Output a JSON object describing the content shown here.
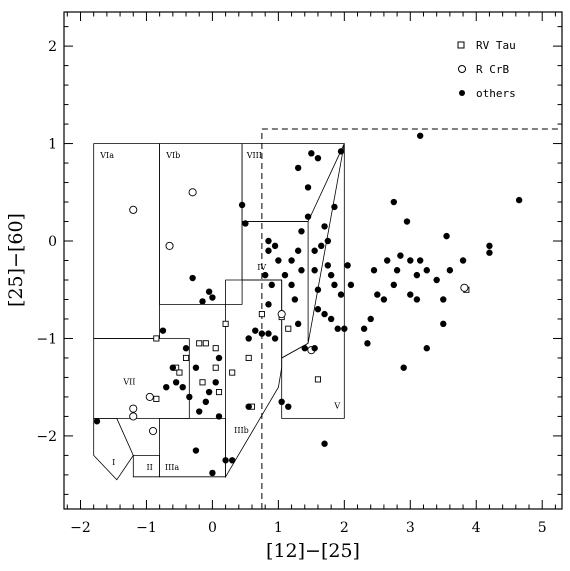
{
  "chart_data": {
    "type": "scatter",
    "xlabel": "[12]−[25]",
    "ylabel": "[25]−[60]",
    "xlim": [
      -2.25,
      5.3
    ],
    "ylim": [
      -2.75,
      2.35
    ],
    "xticks": [
      -2,
      -1,
      0,
      1,
      2,
      3,
      4,
      5
    ],
    "yticks": [
      -2,
      -1,
      0,
      1,
      2
    ],
    "legend": [
      {
        "label": "RV Tau",
        "marker": "open-square"
      },
      {
        "label": "R CrB",
        "marker": "open-circle"
      },
      {
        "label": "others",
        "marker": "filled-circle"
      }
    ],
    "region_labels": [
      "VIa",
      "VIb",
      "VIII",
      "IV",
      "VII",
      "I",
      "II",
      "IIIa",
      "IIIb",
      "V"
    ],
    "reference_lines": {
      "vertical_x": 0.75,
      "horizontal_y": 1.15
    },
    "regions": [
      {
        "label": "VIa",
        "polygon": [
          [
            -1.8,
            1.0
          ],
          [
            -0.8,
            1.0
          ],
          [
            -0.8,
            -1.0
          ],
          [
            -1.8,
            -1.0
          ]
        ]
      },
      {
        "label": "VIb",
        "polygon": [
          [
            -0.8,
            1.0
          ],
          [
            0.45,
            1.0
          ],
          [
            0.45,
            -0.65
          ],
          [
            -0.8,
            -0.65
          ]
        ]
      },
      {
        "label": "VIII",
        "polygon": [
          [
            0.45,
            1.0
          ],
          [
            2.0,
            1.0
          ],
          [
            1.45,
            0.2
          ],
          [
            0.45,
            0.2
          ]
        ]
      },
      {
        "label": "IV",
        "polygon": [
          [
            0.45,
            0.2
          ],
          [
            1.45,
            0.2
          ],
          [
            1.45,
            -1.05
          ],
          [
            1.05,
            -1.2
          ],
          [
            1.05,
            -0.4
          ],
          [
            0.45,
            -0.4
          ]
        ]
      },
      {
        "label": "VII",
        "polygon": [
          [
            -1.8,
            -1.0
          ],
          [
            -0.35,
            -1.0
          ],
          [
            -0.35,
            -1.82
          ],
          [
            -1.8,
            -1.82
          ]
        ]
      },
      {
        "label": "I",
        "polygon": [
          [
            -1.8,
            -1.82
          ],
          [
            -1.45,
            -1.82
          ],
          [
            -1.2,
            -2.2
          ],
          [
            -1.45,
            -2.45
          ],
          [
            -1.8,
            -2.2
          ]
        ]
      },
      {
        "label": "II",
        "polygon": [
          [
            -1.2,
            -2.2
          ],
          [
            -1.2,
            -2.42
          ],
          [
            -0.8,
            -2.42
          ],
          [
            -0.8,
            -2.2
          ]
        ]
      },
      {
        "label": "IIIa",
        "polygon": [
          [
            -0.8,
            -1.82
          ],
          [
            -0.8,
            -2.42
          ],
          [
            0.2,
            -2.42
          ],
          [
            0.2,
            -1.82
          ]
        ]
      },
      {
        "label": "IIIb",
        "polygon": [
          [
            0.2,
            -0.4
          ],
          [
            1.05,
            -0.4
          ],
          [
            1.05,
            -1.3
          ],
          [
            1.0,
            -1.5
          ],
          [
            0.2,
            -2.42
          ]
        ]
      },
      {
        "label": "V",
        "polygon": [
          [
            1.05,
            -1.2
          ],
          [
            1.45,
            -1.05
          ],
          [
            2.0,
            1.0
          ],
          [
            2.0,
            -1.82
          ],
          [
            1.05,
            -1.82
          ]
        ]
      }
    ],
    "series": [
      {
        "name": "RV Tau",
        "marker": "open-square",
        "points": [
          [
            -0.85,
            -1.0
          ],
          [
            -0.2,
            -1.05
          ],
          [
            0.05,
            -1.1
          ],
          [
            0.2,
            -0.85
          ],
          [
            -0.4,
            -1.2
          ],
          [
            0.3,
            -1.35
          ],
          [
            0.1,
            -1.55
          ],
          [
            0.55,
            -1.2
          ],
          [
            -0.15,
            -1.45
          ],
          [
            -0.55,
            -1.3
          ],
          [
            0.6,
            -1.7
          ],
          [
            0.75,
            -0.75
          ],
          [
            1.05,
            -0.78
          ],
          [
            1.15,
            -0.9
          ],
          [
            1.6,
            -1.42
          ],
          [
            -0.85,
            -1.62
          ],
          [
            0.05,
            -1.3
          ],
          [
            -0.1,
            -1.05
          ],
          [
            -0.5,
            -1.35
          ],
          [
            3.85,
            -0.5
          ]
        ]
      },
      {
        "name": "R CrB",
        "marker": "open-circle",
        "points": [
          [
            -1.2,
            0.32
          ],
          [
            -0.3,
            0.5
          ],
          [
            -0.65,
            -0.05
          ],
          [
            -0.95,
            -1.6
          ],
          [
            -1.2,
            -1.72
          ],
          [
            -1.2,
            -1.8
          ],
          [
            -0.9,
            -1.95
          ],
          [
            1.05,
            -0.75
          ],
          [
            1.5,
            -1.12
          ],
          [
            3.82,
            -0.48
          ]
        ]
      },
      {
        "name": "others",
        "points": [
          [
            -1.75,
            -1.85
          ],
          [
            -0.75,
            -0.92
          ],
          [
            -0.3,
            -0.38
          ],
          [
            -0.15,
            -0.62
          ],
          [
            0.0,
            -0.58
          ],
          [
            -0.05,
            -0.52
          ],
          [
            -0.4,
            -1.1
          ],
          [
            -0.6,
            -1.3
          ],
          [
            -0.55,
            -1.45
          ],
          [
            -0.45,
            -1.5
          ],
          [
            -0.7,
            -1.5
          ],
          [
            -0.35,
            -1.6
          ],
          [
            -0.25,
            -1.3
          ],
          [
            -0.1,
            -1.65
          ],
          [
            0.1,
            -1.8
          ],
          [
            0.1,
            -1.2
          ],
          [
            0.05,
            -1.45
          ],
          [
            -0.05,
            -1.55
          ],
          [
            -0.2,
            -1.75
          ],
          [
            -0.25,
            -2.15
          ],
          [
            0.2,
            -2.25
          ],
          [
            0.3,
            -2.25
          ],
          [
            0.0,
            -2.38
          ],
          [
            0.45,
            0.37
          ],
          [
            0.5,
            0.18
          ],
          [
            0.55,
            -1.7
          ],
          [
            0.55,
            -1.0
          ],
          [
            0.65,
            -0.92
          ],
          [
            0.75,
            -0.95
          ],
          [
            0.85,
            -0.95
          ],
          [
            0.95,
            -1.0
          ],
          [
            0.85,
            -0.65
          ],
          [
            0.9,
            -0.45
          ],
          [
            0.8,
            -0.35
          ],
          [
            0.85,
            0.0
          ],
          [
            0.85,
            -0.1
          ],
          [
            0.95,
            -0.05
          ],
          [
            1.0,
            -0.2
          ],
          [
            1.1,
            -0.35
          ],
          [
            1.2,
            -0.45
          ],
          [
            1.2,
            -0.2
          ],
          [
            1.05,
            -1.65
          ],
          [
            1.15,
            -1.7
          ],
          [
            1.25,
            -0.6
          ],
          [
            1.3,
            -0.85
          ],
          [
            1.3,
            -0.1
          ],
          [
            1.35,
            -0.3
          ],
          [
            1.35,
            0.1
          ],
          [
            1.45,
            0.25
          ],
          [
            1.45,
            0.55
          ],
          [
            1.5,
            0.9
          ],
          [
            1.6,
            0.85
          ],
          [
            1.55,
            -0.1
          ],
          [
            1.55,
            -0.3
          ],
          [
            1.6,
            -0.5
          ],
          [
            1.65,
            -0.05
          ],
          [
            1.7,
            0.15
          ],
          [
            1.75,
            0.0
          ],
          [
            1.75,
            -0.25
          ],
          [
            1.8,
            -0.35
          ],
          [
            1.85,
            -0.45
          ],
          [
            1.6,
            -0.7
          ],
          [
            1.7,
            -0.75
          ],
          [
            1.8,
            -0.8
          ],
          [
            1.9,
            -0.9
          ],
          [
            1.4,
            -1.1
          ],
          [
            1.55,
            -1.1
          ],
          [
            1.3,
            0.75
          ],
          [
            1.85,
            0.35
          ],
          [
            1.95,
            -0.55
          ],
          [
            2.0,
            -0.9
          ],
          [
            2.05,
            -0.25
          ],
          [
            2.1,
            -0.45
          ],
          [
            1.7,
            -2.08
          ],
          [
            1.95,
            0.92
          ],
          [
            2.3,
            -0.9
          ],
          [
            2.35,
            -1.05
          ],
          [
            2.4,
            -0.8
          ],
          [
            2.45,
            -0.3
          ],
          [
            2.5,
            -0.55
          ],
          [
            2.6,
            -0.6
          ],
          [
            2.65,
            -0.2
          ],
          [
            2.75,
            -0.45
          ],
          [
            2.75,
            0.4
          ],
          [
            2.8,
            -0.3
          ],
          [
            2.85,
            -0.15
          ],
          [
            2.9,
            -1.3
          ],
          [
            2.95,
            0.2
          ],
          [
            3.0,
            -0.2
          ],
          [
            3.0,
            -0.55
          ],
          [
            3.1,
            -0.35
          ],
          [
            3.1,
            -0.6
          ],
          [
            3.15,
            -0.2
          ],
          [
            3.15,
            1.08
          ],
          [
            3.25,
            -0.3
          ],
          [
            3.25,
            -1.1
          ],
          [
            3.4,
            -0.4
          ],
          [
            3.5,
            -0.85
          ],
          [
            3.5,
            -0.6
          ],
          [
            3.55,
            0.05
          ],
          [
            3.6,
            -0.3
          ],
          [
            3.8,
            -0.2
          ],
          [
            4.2,
            -0.05
          ],
          [
            4.2,
            -0.12
          ],
          [
            4.65,
            0.42
          ]
        ]
      }
    ]
  }
}
